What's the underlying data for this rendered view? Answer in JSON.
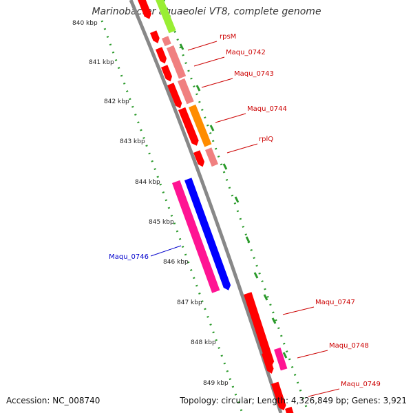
{
  "title": "Marinobacter aquaeolei VT8, complete genome",
  "footer": {
    "accession": "Accession: NC_008740",
    "summary": "Topology: circular; Length: 4,326,849 bp; Genes: 3,921"
  },
  "colors": {
    "backbone": "#888888",
    "ruler_tick": "#2a9a2a",
    "label_red": "#cc0000",
    "label_blue": "#0000cc"
  },
  "ticks": [
    {
      "label": "840 kbp"
    },
    {
      "label": "841 kbp"
    },
    {
      "label": "842 kbp"
    },
    {
      "label": "843 kbp"
    },
    {
      "label": "844 kbp"
    },
    {
      "label": "845 kbp"
    },
    {
      "label": "846 kbp"
    },
    {
      "label": "847 kbp"
    },
    {
      "label": "848 kbp"
    },
    {
      "label": "849 kbp"
    }
  ],
  "labels": [
    {
      "text": "rpsM",
      "color": "#cc0000"
    },
    {
      "text": "Maqu_0742",
      "color": "#cc0000"
    },
    {
      "text": "Maqu_0743",
      "color": "#cc0000"
    },
    {
      "text": "Maqu_0744",
      "color": "#cc0000"
    },
    {
      "text": "rplQ",
      "color": "#cc0000"
    },
    {
      "text": "Maqu_0746",
      "color": "#0000cc"
    },
    {
      "text": "Maqu_0747",
      "color": "#cc0000"
    },
    {
      "text": "Maqu_0748",
      "color": "#cc0000"
    },
    {
      "text": "Maqu_0749",
      "color": "#cc0000"
    }
  ]
}
